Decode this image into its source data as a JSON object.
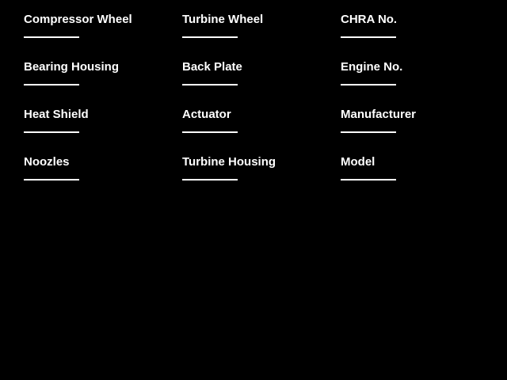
{
  "page": {
    "background_color": "#000000",
    "text_color": "#ffffff"
  },
  "form": {
    "columns": [
      {
        "fields": [
          {
            "label": "Compressor Wheel",
            "value": ""
          },
          {
            "label": "Bearing Housing",
            "value": ""
          },
          {
            "label": "Heat Shield",
            "value": ""
          },
          {
            "label": "Noozles",
            "value": ""
          }
        ]
      },
      {
        "fields": [
          {
            "label": "Turbine Wheel",
            "value": ""
          },
          {
            "label": "Back Plate",
            "value": ""
          },
          {
            "label": "Actuator",
            "value": ""
          },
          {
            "label": "Turbine Housing",
            "value": ""
          }
        ]
      },
      {
        "fields": [
          {
            "label": "CHRA No.",
            "value": ""
          },
          {
            "label": "Engine No.",
            "value": ""
          },
          {
            "label": "Manufacturer",
            "value": ""
          },
          {
            "label": "Model",
            "value": ""
          }
        ]
      }
    ]
  }
}
